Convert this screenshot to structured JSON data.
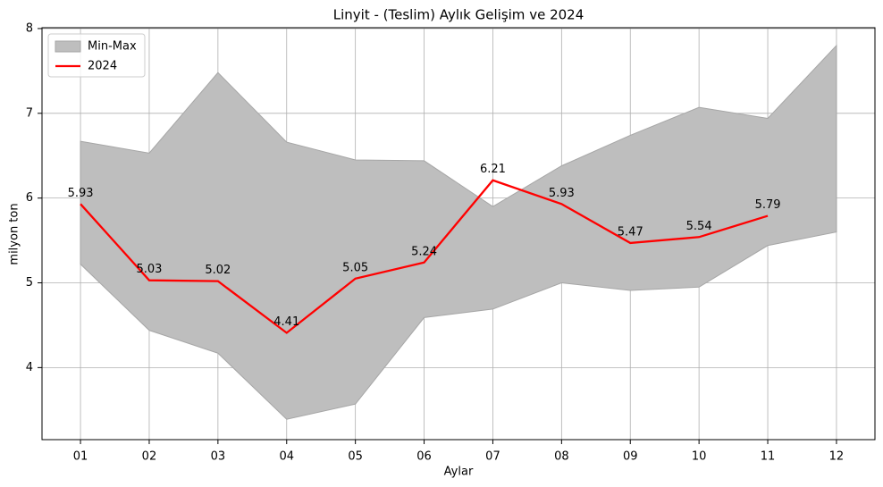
{
  "chart_data": {
    "type": "line",
    "title": "Linyit - (Teslim) Aylık Gelişim ve 2024",
    "xlabel": "Aylar",
    "ylabel": "milyon ton",
    "categories": [
      "01",
      "02",
      "03",
      "04",
      "05",
      "06",
      "07",
      "08",
      "09",
      "10",
      "11",
      "12"
    ],
    "series": [
      {
        "name": "Min-Max",
        "type": "band",
        "color": "#bebebe",
        "edge_color": "#a6a6a6",
        "lower": [
          5.22,
          4.44,
          4.17,
          3.39,
          3.57,
          4.59,
          4.69,
          5.0,
          4.91,
          4.95,
          5.44,
          5.6
        ],
        "upper": [
          6.67,
          6.53,
          7.48,
          6.66,
          6.45,
          6.44,
          5.9,
          6.38,
          6.74,
          7.07,
          6.94,
          7.8
        ]
      },
      {
        "name": "2024",
        "type": "line",
        "color": "#ff0000",
        "values": [
          5.93,
          5.03,
          5.02,
          4.41,
          5.05,
          5.24,
          6.21,
          5.93,
          5.47,
          5.54,
          5.79,
          null
        ]
      }
    ],
    "ylim": [
      3.15,
      8.01
    ],
    "yticks": [
      4,
      5,
      6,
      7,
      8
    ],
    "grid": true,
    "legend": "upper left",
    "data_labels": true
  }
}
